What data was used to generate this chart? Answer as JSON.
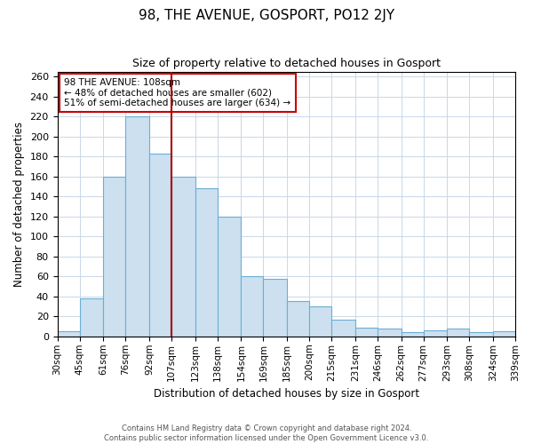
{
  "title": "98, THE AVENUE, GOSPORT, PO12 2JY",
  "subtitle": "Size of property relative to detached houses in Gosport",
  "xlabel": "Distribution of detached houses by size in Gosport",
  "ylabel": "Number of detached properties",
  "bin_edges": [
    30,
    45,
    61,
    76,
    92,
    107,
    123,
    138,
    154,
    169,
    185,
    200,
    215,
    231,
    246,
    262,
    277,
    293,
    308,
    324,
    339
  ],
  "bar_values": [
    5,
    38,
    160,
    220,
    183,
    160,
    148,
    120,
    60,
    58,
    35,
    30,
    17,
    9,
    8,
    4,
    6,
    8,
    4,
    5
  ],
  "tick_labels": [
    "30sqm",
    "45sqm",
    "61sqm",
    "76sqm",
    "92sqm",
    "107sqm",
    "123sqm",
    "138sqm",
    "154sqm",
    "169sqm",
    "185sqm",
    "200sqm",
    "215sqm",
    "231sqm",
    "246sqm",
    "262sqm",
    "277sqm",
    "293sqm",
    "308sqm",
    "324sqm",
    "339sqm"
  ],
  "bar_color": "#cce0f0",
  "bar_edge_color": "#6baed6",
  "property_bin_index": 5,
  "property_label": "98 THE AVENUE: 108sqm",
  "pct_smaller": 48,
  "n_smaller": 602,
  "pct_larger_semi": 51,
  "n_larger_semi": 634,
  "vline_color": "#aa0000",
  "annotation_box_edge_color": "#cc0000",
  "ylim": [
    0,
    265
  ],
  "yticks": [
    0,
    20,
    40,
    60,
    80,
    100,
    120,
    140,
    160,
    180,
    200,
    220,
    240,
    260
  ],
  "footer_line1": "Contains HM Land Registry data © Crown copyright and database right 2024.",
  "footer_line2": "Contains public sector information licensed under the Open Government Licence v3.0.",
  "background_color": "#ffffff",
  "grid_color": "#c8d8e8"
}
